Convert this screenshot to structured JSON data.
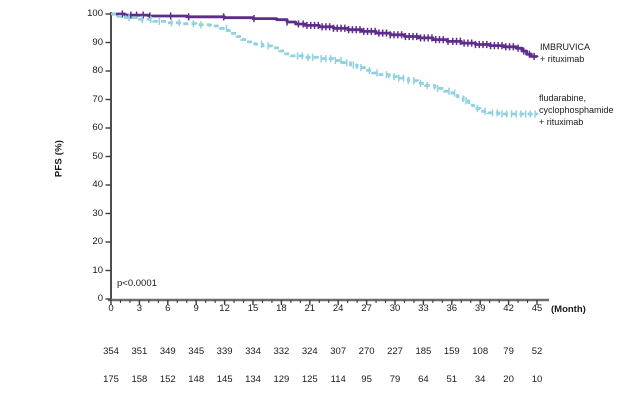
{
  "figure": {
    "background": "#ffffff",
    "axis_color": "#3a3a3a",
    "xaxis_line_color": "#6e6e6e",
    "text_color": "#1a1a1a"
  },
  "chart_data": {
    "type": "line",
    "subtype": "kaplan-meier-step",
    "title": "",
    "ylabel": "PFS (%)",
    "xlabel": "(Month)",
    "xlim": [
      0,
      45
    ],
    "ylim": [
      0,
      100
    ],
    "x_ticks": [
      0,
      3,
      6,
      9,
      12,
      15,
      18,
      21,
      24,
      27,
      30,
      33,
      36,
      39,
      42,
      45
    ],
    "x_minor_tick_step": 1,
    "y_ticks": [
      0,
      10,
      20,
      30,
      40,
      50,
      60,
      70,
      80,
      90,
      100
    ],
    "grid": false,
    "annotation": "p<0.0001",
    "legend_position": "right of curve ends",
    "at_risk_months": [
      0,
      3,
      6,
      9,
      12,
      15,
      18,
      21,
      24,
      27,
      30,
      33,
      36,
      39,
      42,
      45
    ],
    "series": [
      {
        "name": "IMBRUVICA + rituximab",
        "label_lines": [
          "IMBRUVICA",
          "+ rituximab"
        ],
        "color": "#5e2d8c",
        "line_style": "solid",
        "points": [
          [
            0,
            100
          ],
          [
            1.5,
            99.6
          ],
          [
            4,
            99.3
          ],
          [
            8,
            99.0
          ],
          [
            12,
            98.7
          ],
          [
            15,
            98.4
          ],
          [
            17.5,
            98.0
          ],
          [
            18.6,
            97.2
          ],
          [
            19.5,
            96.5
          ],
          [
            20.5,
            96.0
          ],
          [
            22,
            95.5
          ],
          [
            23.5,
            95.0
          ],
          [
            25,
            94.5
          ],
          [
            26.5,
            93.9
          ],
          [
            28,
            93.3
          ],
          [
            29.5,
            92.7
          ],
          [
            31,
            92.1
          ],
          [
            32.5,
            91.6
          ],
          [
            34,
            91.0
          ],
          [
            35.5,
            90.4
          ],
          [
            37,
            89.8
          ],
          [
            38.5,
            89.3
          ],
          [
            40,
            88.9
          ],
          [
            41.5,
            88.5
          ],
          [
            42.8,
            88.0
          ],
          [
            43.4,
            87.0
          ],
          [
            43.9,
            85.9
          ],
          [
            44.4,
            85.1
          ],
          [
            45,
            84.8
          ]
        ],
        "censor_months": [
          1.2,
          2.1,
          2.7,
          3.4,
          4.1,
          6.3,
          8.2,
          11.9,
          15.1,
          18.6,
          19.8,
          20.3,
          20.7,
          21.1,
          21.5,
          21.9,
          22.3,
          22.7,
          23.1,
          23.5,
          23.9,
          24.3,
          24.7,
          25.1,
          25.5,
          25.9,
          26.3,
          26.7,
          27.1,
          27.5,
          27.9,
          28.3,
          28.7,
          29.1,
          29.5,
          29.9,
          30.3,
          30.7,
          31.1,
          31.5,
          31.9,
          32.3,
          32.7,
          33.1,
          33.5,
          33.9,
          34.3,
          34.7,
          35.1,
          35.6,
          36.1,
          36.5,
          36.9,
          37.3,
          37.7,
          38.1,
          38.5,
          38.9,
          39.3,
          39.7,
          40.1,
          40.5,
          40.9,
          41.3,
          41.7,
          42.1,
          42.5,
          43.0,
          43.6,
          44.2,
          44.7
        ],
        "at_risk": [
          354,
          351,
          349,
          345,
          339,
          334,
          332,
          324,
          307,
          270,
          227,
          185,
          159,
          108,
          79,
          52
        ]
      },
      {
        "name": "fludarabine, cyclophosphamide + rituximab",
        "label_lines": [
          "fludarabine,",
          "cyclophosphamide",
          "+ rituximab"
        ],
        "color": "#92d1e0",
        "line_style": "dashed",
        "points": [
          [
            0,
            100
          ],
          [
            0.7,
            99.2
          ],
          [
            1.5,
            98.7
          ],
          [
            3,
            98.1
          ],
          [
            4.5,
            97.4
          ],
          [
            6,
            96.9
          ],
          [
            7.5,
            96.6
          ],
          [
            9,
            96.2
          ],
          [
            10.5,
            95.8
          ],
          [
            11.5,
            95.0
          ],
          [
            12.3,
            94.2
          ],
          [
            12.8,
            93.2
          ],
          [
            13.3,
            92.1
          ],
          [
            13.8,
            91.0
          ],
          [
            14.3,
            90.2
          ],
          [
            15.2,
            89.4
          ],
          [
            16,
            88.8
          ],
          [
            17,
            88.1
          ],
          [
            17.8,
            87.0
          ],
          [
            18.3,
            86.0
          ],
          [
            19,
            85.3
          ],
          [
            20.5,
            84.8
          ],
          [
            22,
            84.3
          ],
          [
            23.5,
            83.7
          ],
          [
            24.5,
            82.9
          ],
          [
            25.3,
            82.1
          ],
          [
            26,
            81.2
          ],
          [
            26.8,
            80.2
          ],
          [
            27.6,
            79.3
          ],
          [
            28.4,
            78.7
          ],
          [
            29.4,
            78.0
          ],
          [
            30.4,
            77.5
          ],
          [
            31.4,
            76.6
          ],
          [
            32.4,
            75.7
          ],
          [
            33.2,
            74.9
          ],
          [
            34.2,
            73.9
          ],
          [
            35.2,
            72.9
          ],
          [
            36,
            72.2
          ],
          [
            36.6,
            70.9
          ],
          [
            37.2,
            69.5
          ],
          [
            37.8,
            68.0
          ],
          [
            38.3,
            66.8
          ],
          [
            39,
            65.9
          ],
          [
            39.8,
            65.3
          ],
          [
            41,
            64.9
          ],
          [
            45,
            64.6
          ]
        ],
        "censor_months": [
          1.9,
          3.3,
          4.2,
          5.1,
          6.4,
          7.2,
          8.7,
          9.5,
          12.2,
          15.9,
          16.6,
          19.7,
          20.2,
          20.8,
          21.3,
          22.2,
          22.7,
          23.2,
          23.7,
          24.3,
          24.9,
          25.6,
          26.4,
          27.3,
          28.1,
          29.1,
          29.9,
          30.4,
          30.9,
          31.4,
          32.0,
          32.7,
          33.4,
          34.5,
          35.7,
          36.3,
          37.5,
          38.7,
          39.5,
          40.3,
          40.8,
          41.3,
          41.8,
          42.3,
          42.8,
          43.3,
          43.8,
          44.3,
          44.8
        ],
        "at_risk": [
          175,
          158,
          152,
          148,
          145,
          134,
          129,
          125,
          114,
          95,
          79,
          64,
          51,
          34,
          20,
          10
        ]
      }
    ]
  }
}
